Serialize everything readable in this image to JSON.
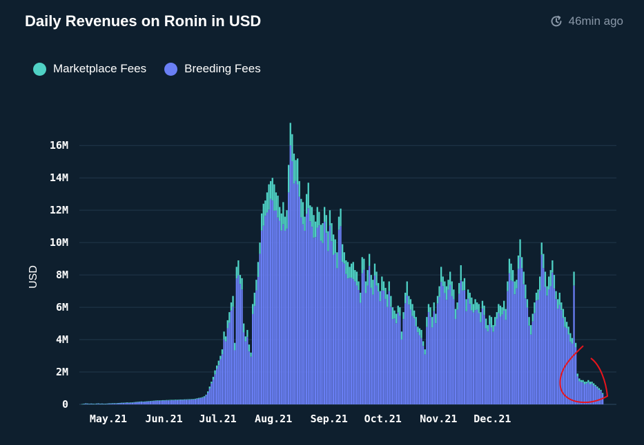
{
  "header": {
    "title": "Daily Revenues on Ronin in USD",
    "updated": "46min ago"
  },
  "colors": {
    "background": "#0e1f2e",
    "marketplace": "#4fd1c5",
    "breeding": "#6a7ff5",
    "grid": "#22384c",
    "annotation": "#e8141c"
  },
  "chart_data": {
    "type": "bar",
    "stacked": true,
    "title": "Daily Revenues on Ronin in USD",
    "ylabel": "USD",
    "xlabel": "",
    "ylim": [
      0,
      17500000
    ],
    "yticks": [
      0,
      2000000,
      4000000,
      6000000,
      8000000,
      10000000,
      12000000,
      14000000,
      16000000
    ],
    "ytick_labels": [
      "0",
      "2M",
      "4M",
      "6M",
      "8M",
      "10M",
      "12M",
      "14M",
      "16M"
    ],
    "x_start": "2021-04-28",
    "xticks": [
      {
        "date": "2021-05-01",
        "label": "May.21"
      },
      {
        "date": "2021-06-01",
        "label": "Jun.21"
      },
      {
        "date": "2021-07-01",
        "label": "Jul.21"
      },
      {
        "date": "2021-08-01",
        "label": "Aug.21"
      },
      {
        "date": "2021-09-01",
        "label": "Sep.21"
      },
      {
        "date": "2021-10-01",
        "label": "Oct.21"
      },
      {
        "date": "2021-11-01",
        "label": "Nov.21"
      },
      {
        "date": "2021-12-01",
        "label": "Dec.21"
      }
    ],
    "legend_position": "top-left",
    "grid": true,
    "series": [
      {
        "name": "Marketplace Fees",
        "color": "#4fd1c5"
      },
      {
        "name": "Breeding Fees",
        "color": "#6a7ff5"
      }
    ],
    "totals": [
      20000,
      40000,
      60000,
      50000,
      40000,
      50000,
      40000,
      30000,
      50000,
      60000,
      40000,
      50000,
      40000,
      40000,
      50000,
      60000,
      60000,
      70000,
      70000,
      70000,
      80000,
      90000,
      100000,
      100000,
      110000,
      120000,
      110000,
      120000,
      120000,
      140000,
      150000,
      160000,
      170000,
      180000,
      170000,
      180000,
      190000,
      200000,
      210000,
      220000,
      230000,
      240000,
      250000,
      250000,
      250000,
      260000,
      260000,
      270000,
      270000,
      280000,
      280000,
      280000,
      290000,
      290000,
      300000,
      300000,
      300000,
      310000,
      310000,
      320000,
      320000,
      330000,
      330000,
      350000,
      380000,
      400000,
      420000,
      450000,
      500000,
      600000,
      800000,
      1100000,
      1400000,
      1700000,
      2100000,
      2400000,
      2700000,
      3000000,
      3400000,
      4500000,
      4200000,
      5200000,
      5700000,
      6300000,
      6700000,
      3800000,
      8500000,
      8900000,
      8000000,
      7800000,
      5000000,
      4200000,
      4600000,
      3700000,
      3200000,
      6200000,
      6900000,
      7700000,
      8800000,
      10000000,
      11800000,
      12400000,
      12600000,
      13100000,
      13600000,
      13800000,
      14000000,
      13600000,
      13100000,
      12900000,
      12200000,
      11800000,
      12500000,
      11600000,
      12000000,
      14800000,
      17400000,
      16700000,
      15500000,
      15100000,
      15200000,
      13800000,
      12700000,
      12500000,
      11600000,
      13000000,
      13700000,
      12300000,
      12200000,
      11700000,
      11300000,
      12200000,
      11900000,
      11100000,
      11200000,
      12200000,
      11700000,
      10700000,
      12000000,
      11200000,
      10500000,
      10200000,
      9400000,
      11600000,
      12100000,
      9900000,
      9400000,
      8900000,
      8800000,
      8500000,
      8700000,
      8800000,
      8300000,
      8200000,
      7600000,
      6900000,
      9100000,
      9000000,
      7600000,
      8300000,
      9300000,
      8000000,
      7700000,
      8700000,
      8200000,
      7500000,
      7000000,
      7900000,
      7600000,
      7200000,
      6800000,
      7600000,
      6700000,
      6000000,
      5800000,
      5600000,
      6100000,
      6000000,
      4500000,
      5700000,
      6900000,
      7600000,
      6700000,
      6500000,
      6200000,
      5800000,
      5400000,
      4800000,
      4700000,
      4600000,
      3900000,
      3400000,
      5400000,
      6200000,
      6000000,
      5400000,
      6300000,
      5600000,
      6700000,
      7300000,
      8500000,
      7900000,
      7600000,
      7300000,
      7700000,
      8200000,
      7600000,
      7100000,
      5900000,
      6300000,
      7500000,
      8600000,
      7600000,
      7800000,
      6500000,
      7100000,
      6900000,
      6600000,
      6200000,
      6500000,
      6300000,
      6200000,
      5700000,
      6400000,
      6100000,
      5300000,
      4900000,
      5500000,
      5400000,
      4900000,
      5400000,
      5700000,
      6200000,
      6100000,
      6000000,
      6400000,
      5900000,
      7600000,
      9000000,
      8700000,
      8300000,
      7600000,
      7700000,
      9200000,
      10200000,
      9100000,
      8200000,
      7400000,
      6500000,
      5400000,
      4900000,
      5600000,
      6300000,
      6900000,
      7100000,
      7900000,
      10000000,
      9300000,
      8200000,
      7300000,
      7900000,
      8300000,
      8900000,
      8000000,
      7000000,
      6500000,
      6900000,
      6300000,
      5900000,
      5400000,
      5100000,
      4800000,
      4400000,
      4100000,
      8200000,
      3800000,
      1900000,
      1600000,
      1500000,
      1500000,
      1400000,
      1400000,
      1500000,
      1400000,
      1400000,
      1300000,
      1200000,
      1100000,
      1000000,
      900000,
      700000
    ]
  }
}
